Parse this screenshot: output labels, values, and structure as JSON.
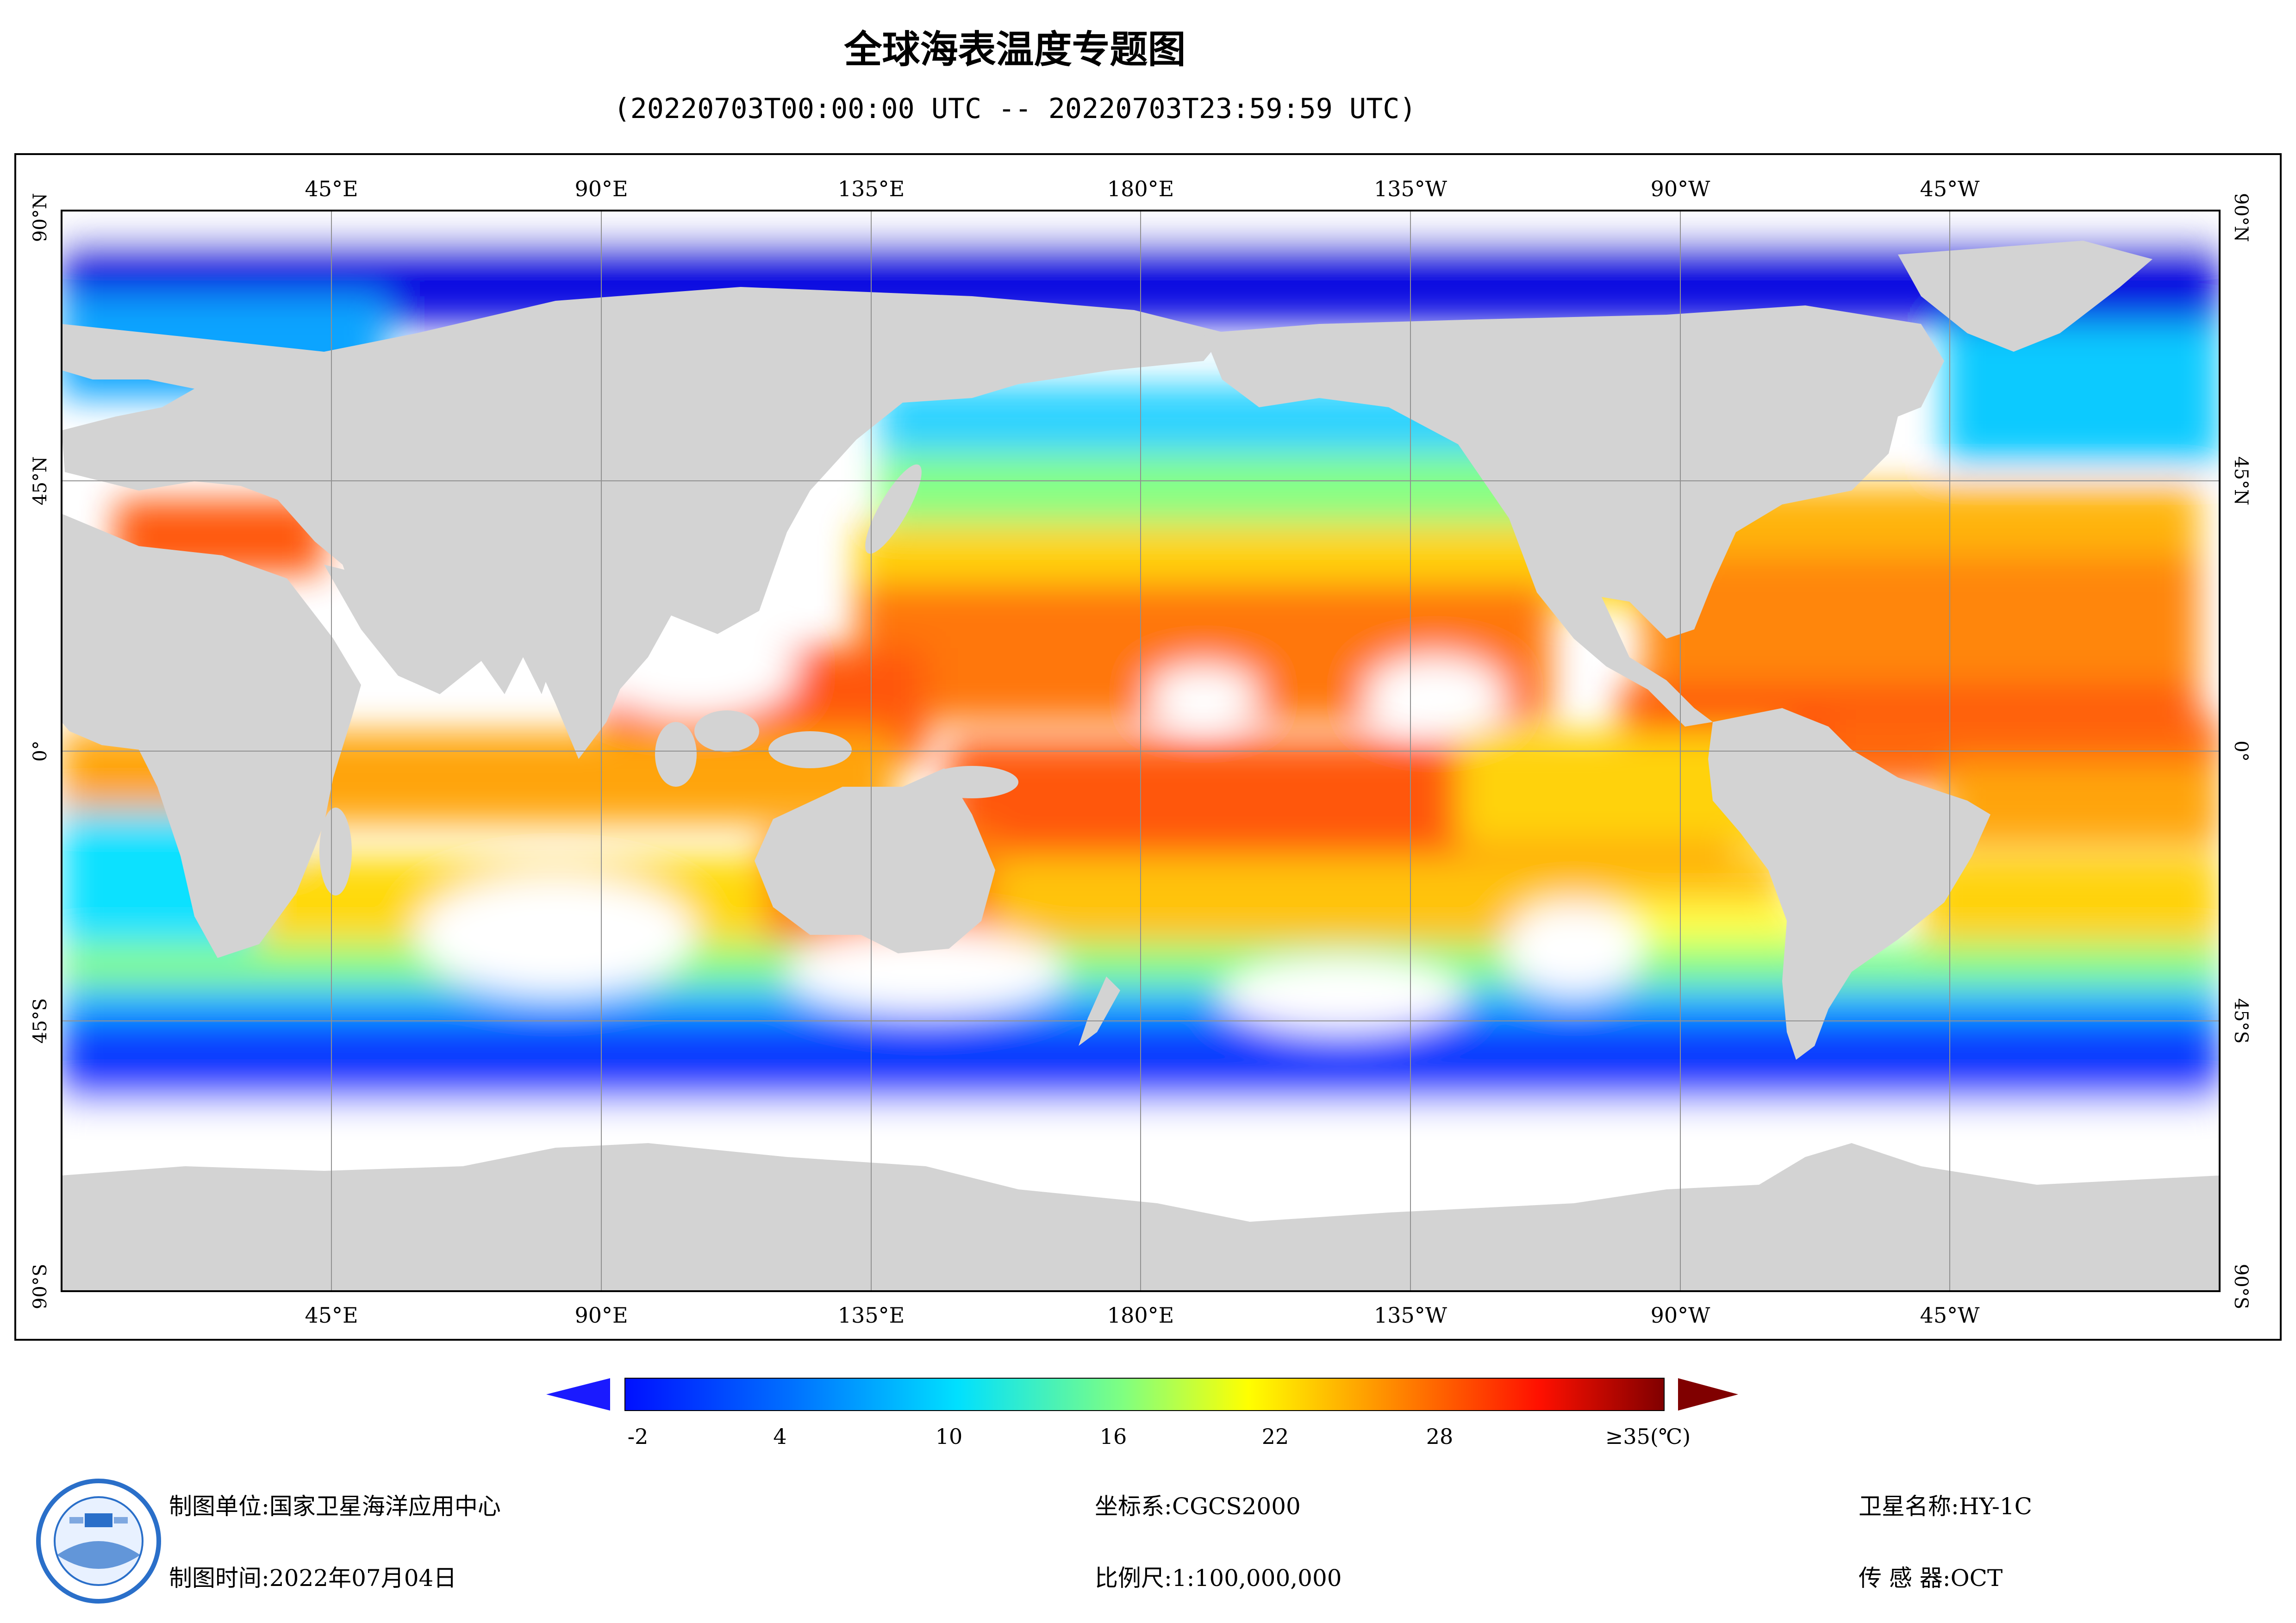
{
  "title": "全球海表温度专题图",
  "subtitle": "(20220703T00:00:00 UTC -- 20220703T23:59:59 UTC)",
  "map": {
    "top_lon_labels": [
      "45°E",
      "90°E",
      "135°E",
      "180°E",
      "135°W",
      "90°W",
      "45°W"
    ],
    "bottom_lon_labels": [
      "45°E",
      "90°E",
      "135°E",
      "180°E",
      "135°W",
      "90°W",
      "45°W"
    ],
    "lat_labels": [
      "90°N",
      "45°N",
      "0°",
      "45°S",
      "90°S"
    ],
    "land_color": "#d3d3d3",
    "no_data_color": "#ffffff"
  },
  "colorbar": {
    "tick_labels": [
      "-2",
      "4",
      "10",
      "16",
      "22",
      "28",
      "≥35(℃)"
    ],
    "min_value": -2,
    "max_value": 35,
    "under_color": "#0000d8",
    "over_color": "#800000"
  },
  "info": {
    "producer_label": "制图单位:",
    "producer_value": "国家卫星海洋应用中心",
    "date_label": "制图时间:",
    "date_value": "2022年07月04日",
    "crs_label": "坐标系:",
    "crs_value": "CGCS2000",
    "scale_label": "比例尺:",
    "scale_value": "1:100,000,000",
    "satellite_label": "卫星名称:",
    "satellite_value": "HY-1C",
    "sensor_label": "传 感 器:",
    "sensor_value": "OCT"
  }
}
